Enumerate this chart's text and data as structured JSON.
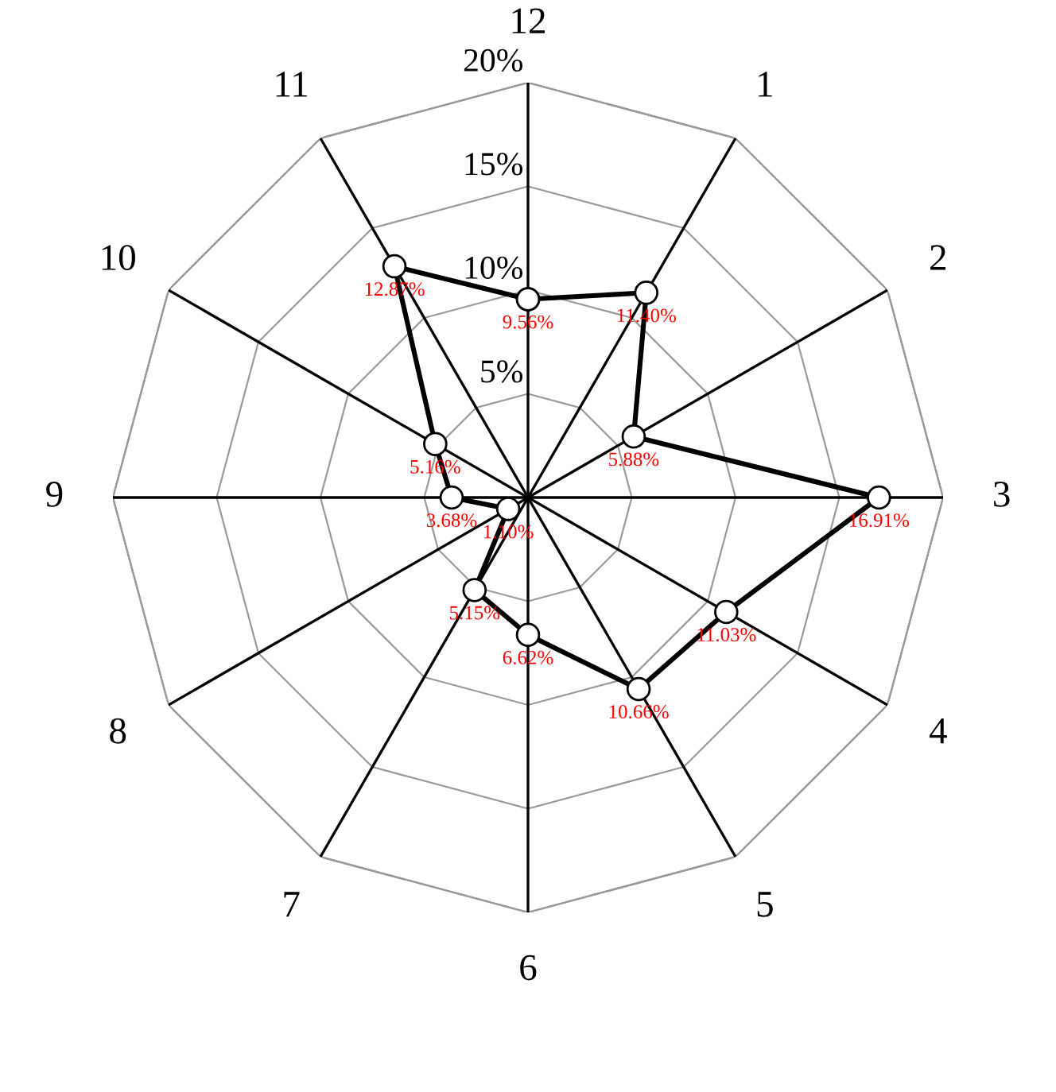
{
  "chart_data": {
    "type": "radar",
    "categories": [
      "12",
      "1",
      "2",
      "3",
      "4",
      "5",
      "6",
      "7",
      "8",
      "9",
      "10",
      "11"
    ],
    "series": [
      {
        "color": "#000000",
        "values": [
          9.56,
          11.4,
          5.88,
          16.91,
          11.03,
          10.66,
          6.62,
          5.15,
          1.1,
          3.68,
          5.16,
          12.87
        ],
        "value_labels": [
          "9.56%",
          "11.40%",
          "5.88%",
          "16.91%",
          "11.03%",
          "10.66%",
          "6.62%",
          "5.15%",
          "1.10%",
          "3.68%",
          "5.16%",
          "12.87%"
        ]
      }
    ],
    "ylim": [
      0,
      20
    ],
    "yticks": [
      {
        "value": 5,
        "label": "5%"
      },
      {
        "value": 10,
        "label": "10%"
      },
      {
        "value": 15,
        "label": "15%"
      },
      {
        "value": 20,
        "label": "20%"
      }
    ],
    "grid": true,
    "marker": "circle",
    "line_style": "solid"
  }
}
